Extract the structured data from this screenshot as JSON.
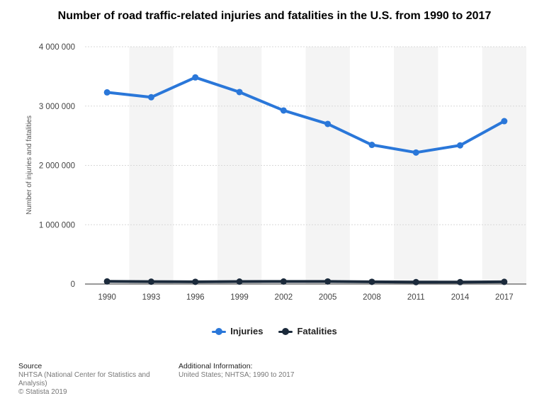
{
  "title": "Number of road traffic-related injuries and fatalities in the U.S. from 1990 to 2017",
  "legend": {
    "injuries": "Injuries",
    "fatalities": "Fatalities"
  },
  "footer": {
    "source_label": "Source",
    "source_text": "NHTSA (National Center for Statistics and Analysis)",
    "copyright": "© Statista 2019",
    "additional_label": "Additional Information:",
    "additional_text": "United States; NHTSA; 1990 to 2017"
  },
  "colors": {
    "injuries": "#2a77d9",
    "fatalities": "#1b2a3b"
  },
  "chart_data": {
    "type": "line",
    "title": "Number of road traffic-related injuries and fatalities in the U.S. from 1990 to 2017",
    "xlabel": "",
    "ylabel": "Number of injuries and fatalities",
    "categories": [
      "1990",
      "1993",
      "1996",
      "1999",
      "2002",
      "2005",
      "2008",
      "2011",
      "2014",
      "2017"
    ],
    "ylim": [
      0,
      4000000
    ],
    "yticks": [
      0,
      1000000,
      2000000,
      3000000,
      4000000
    ],
    "ytick_labels": [
      "0",
      "1 000 000",
      "2 000 000",
      "3 000 000",
      "4 000 000"
    ],
    "series": [
      {
        "name": "Injuries",
        "values": [
          3231000,
          3149000,
          3483000,
          3236000,
          2926000,
          2699000,
          2346000,
          2217000,
          2338000,
          2746000
        ]
      },
      {
        "name": "Fatalities",
        "values": [
          44599,
          40150,
          37494,
          41717,
          43005,
          43510,
          37423,
          32479,
          32744,
          37133
        ]
      }
    ],
    "legend_position": "bottom",
    "grid": true
  }
}
